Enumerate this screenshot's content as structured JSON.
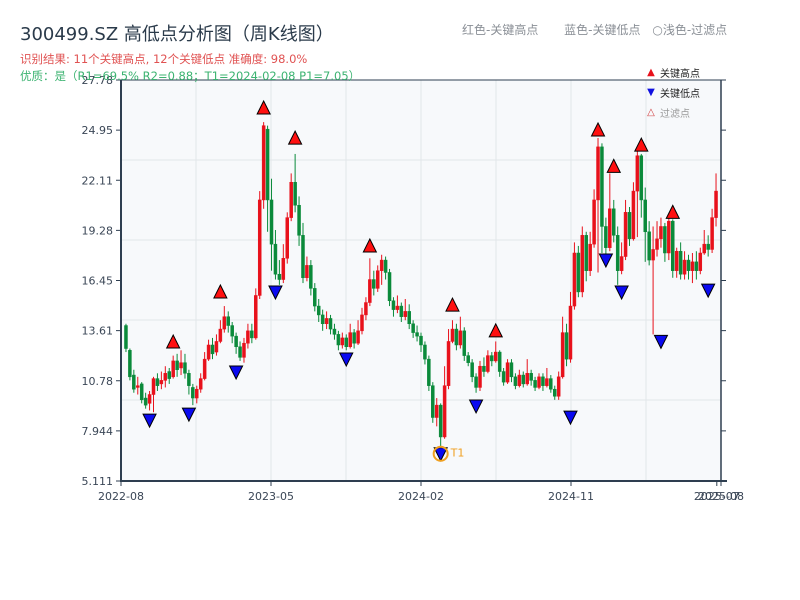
{
  "header": {
    "title": "300499.SZ 高低点分析图（周K线图）",
    "result_line": "识别结果: 11个关键高点, 12个关键低点  准确度: 98.0%",
    "quality_line": "优质：是（R1=69.5%  R2=0.88；T1=2024-02-08 P1=7.05）",
    "top_legend": [
      "红色-关键高点",
      "蓝色-关键低点",
      "○浅色-过滤点"
    ]
  },
  "legend": {
    "items": [
      {
        "label": "关键高点",
        "symbol": "▲",
        "color": "#e8111b"
      },
      {
        "label": "关键低点",
        "symbol": "▼",
        "color": "#1010e0"
      },
      {
        "label": "过滤点",
        "symbol": "△",
        "color": "#999999"
      }
    ]
  },
  "colors": {
    "up": "#e8111b",
    "down": "#0a8a3a",
    "high_marker": "#ff1010",
    "low_marker": "#0a0af0",
    "t1_ring": "#f0a020",
    "axis": "#2e3e50",
    "grid": "#e2e6ea",
    "plot_bg": "#f7f9fb"
  },
  "chart_data": {
    "type": "candlestick",
    "title": "300499.SZ 高低点分析图（周K线图）",
    "xlabel": "",
    "ylabel": "",
    "ylim": [
      5.111,
      27.78
    ],
    "yticks": [
      "27.78",
      "24.95",
      "22.11",
      "19.28",
      "16.45",
      "13.61",
      "10.78",
      "7.944",
      "5.111"
    ],
    "xticks": [
      {
        "label": "2022-08",
        "pos": 0
      },
      {
        "label": "2023-05",
        "pos": 0.25
      },
      {
        "label": "2024-02",
        "pos": 0.5
      },
      {
        "label": "2024-11",
        "pos": 0.75
      },
      {
        "label": "2025-07",
        "pos": 0.993
      },
      {
        "label": "2025-08",
        "pos": 1.0
      }
    ],
    "grid": true,
    "legend_position": "upper right",
    "annotation": {
      "label": "T1",
      "date": "2024-02-08",
      "price": 7.05
    },
    "candles_ohlc": [
      [
        13.9,
        12.6,
        14.0,
        12.4
      ],
      [
        12.5,
        11.0,
        12.6,
        10.8
      ],
      [
        11.1,
        10.3,
        11.4,
        10.1
      ],
      [
        10.4,
        10.5,
        11.0,
        10.0
      ],
      [
        10.6,
        9.7,
        10.7,
        9.5
      ],
      [
        9.8,
        9.4,
        10.1,
        9.2
      ],
      [
        9.5,
        10.0,
        10.2,
        9.1
      ],
      [
        10.0,
        10.9,
        11.0,
        9.0
      ],
      [
        10.9,
        10.5,
        11.2,
        10.2
      ],
      [
        10.6,
        10.8,
        11.3,
        10.3
      ],
      [
        10.8,
        11.2,
        11.6,
        10.4
      ],
      [
        11.3,
        10.9,
        11.5,
        10.6
      ],
      [
        11.0,
        11.9,
        12.2,
        10.9
      ],
      [
        11.9,
        11.4,
        12.3,
        11.0
      ],
      [
        11.5,
        11.8,
        12.5,
        11.1
      ],
      [
        11.8,
        11.2,
        12.3,
        10.9
      ],
      [
        11.2,
        10.5,
        11.4,
        10.0
      ],
      [
        10.4,
        9.8,
        10.6,
        9.4
      ],
      [
        9.8,
        10.3,
        10.5,
        9.5
      ],
      [
        10.3,
        10.9,
        11.2,
        10.1
      ],
      [
        10.9,
        12.0,
        12.4,
        10.8
      ],
      [
        12.0,
        12.8,
        13.1,
        11.9
      ],
      [
        12.8,
        12.3,
        13.2,
        12.0
      ],
      [
        12.4,
        13.0,
        13.4,
        12.2
      ],
      [
        13.0,
        13.7,
        14.2,
        12.9
      ],
      [
        13.7,
        14.4,
        15.0,
        13.5
      ],
      [
        14.4,
        13.9,
        14.7,
        13.5
      ],
      [
        13.9,
        13.3,
        14.1,
        12.9
      ],
      [
        13.3,
        12.7,
        13.5,
        12.3
      ],
      [
        12.7,
        12.1,
        13.0,
        11.9
      ],
      [
        12.1,
        12.9,
        13.2,
        11.8
      ],
      [
        12.9,
        13.6,
        14.0,
        12.6
      ],
      [
        13.6,
        13.2,
        14.0,
        12.9
      ],
      [
        13.2,
        15.6,
        16.0,
        13.1
      ],
      [
        15.6,
        21.0,
        21.5,
        15.4
      ],
      [
        21.0,
        25.2,
        25.4,
        20.5
      ],
      [
        25.0,
        21.0,
        25.2,
        19.2
      ],
      [
        21.0,
        18.5,
        22.2,
        17.0
      ],
      [
        18.5,
        16.8,
        19.3,
        16.5
      ],
      [
        16.8,
        16.5,
        17.6,
        16.2
      ],
      [
        16.5,
        17.7,
        18.5,
        16.3
      ],
      [
        17.7,
        20.0,
        20.3,
        17.4
      ],
      [
        20.0,
        22.0,
        22.5,
        19.8
      ],
      [
        22.0,
        20.7,
        23.6,
        20.3
      ],
      [
        20.7,
        19.0,
        21.2,
        18.4
      ],
      [
        19.0,
        16.6,
        19.7,
        16.3
      ],
      [
        16.6,
        17.3,
        17.8,
        16.4
      ],
      [
        17.3,
        16.0,
        17.6,
        15.6
      ],
      [
        16.0,
        15.0,
        16.3,
        14.7
      ],
      [
        15.0,
        14.5,
        15.4,
        14.1
      ],
      [
        14.5,
        14.0,
        14.8,
        13.6
      ],
      [
        14.0,
        14.3,
        14.7,
        13.7
      ],
      [
        14.3,
        13.7,
        14.5,
        13.4
      ],
      [
        13.7,
        13.4,
        14.0,
        13.1
      ],
      [
        13.4,
        12.8,
        13.6,
        12.5
      ],
      [
        12.8,
        13.2,
        13.5,
        12.6
      ],
      [
        13.2,
        12.7,
        13.4,
        12.5
      ],
      [
        12.7,
        13.5,
        14.0,
        12.6
      ],
      [
        13.5,
        12.9,
        13.7,
        12.6
      ],
      [
        12.9,
        13.6,
        14.2,
        12.8
      ],
      [
        13.6,
        14.5,
        14.9,
        13.4
      ],
      [
        14.5,
        15.2,
        15.5,
        14.2
      ],
      [
        15.2,
        16.5,
        17.7,
        15.0
      ],
      [
        16.5,
        16.0,
        17.0,
        15.6
      ],
      [
        16.0,
        17.0,
        17.3,
        15.8
      ],
      [
        17.0,
        17.6,
        17.9,
        16.2
      ],
      [
        17.6,
        16.9,
        17.8,
        16.5
      ],
      [
        16.9,
        15.3,
        17.1,
        15.0
      ],
      [
        15.3,
        14.8,
        15.5,
        14.4
      ],
      [
        14.8,
        15.0,
        15.6,
        14.6
      ],
      [
        15.0,
        14.4,
        15.2,
        14.1
      ],
      [
        14.4,
        14.7,
        15.4,
        14.2
      ],
      [
        14.7,
        14.0,
        15.1,
        13.7
      ],
      [
        14.0,
        13.5,
        14.2,
        13.2
      ],
      [
        13.5,
        13.3,
        13.9,
        13.0
      ],
      [
        13.3,
        12.8,
        13.5,
        12.4
      ],
      [
        12.8,
        12.0,
        13.0,
        11.7
      ],
      [
        12.0,
        10.5,
        12.2,
        10.2
      ],
      [
        10.5,
        8.7,
        10.7,
        8.4
      ],
      [
        8.7,
        9.4,
        9.8,
        8.2
      ],
      [
        9.4,
        7.6,
        9.5,
        7.05
      ],
      [
        7.6,
        10.5,
        11.6,
        7.5
      ],
      [
        10.5,
        13.0,
        13.7,
        10.3
      ],
      [
        13.0,
        13.7,
        14.2,
        12.9
      ],
      [
        13.7,
        12.8,
        14.0,
        12.5
      ],
      [
        12.8,
        13.6,
        14.4,
        12.6
      ],
      [
        13.6,
        12.2,
        13.8,
        11.9
      ],
      [
        12.2,
        11.8,
        12.4,
        11.6
      ],
      [
        11.8,
        11.0,
        12.0,
        10.7
      ],
      [
        11.0,
        10.4,
        11.2,
        10.1
      ],
      [
        10.4,
        11.6,
        11.9,
        10.2
      ],
      [
        11.6,
        11.3,
        12.1,
        11.0
      ],
      [
        11.3,
        12.2,
        12.5,
        11.2
      ],
      [
        12.2,
        11.9,
        12.4,
        11.6
      ],
      [
        11.9,
        12.4,
        13.0,
        11.8
      ],
      [
        12.4,
        11.3,
        12.5,
        11.0
      ],
      [
        11.3,
        10.7,
        11.5,
        10.5
      ],
      [
        10.7,
        11.8,
        12.0,
        10.6
      ],
      [
        11.8,
        11.0,
        12.0,
        10.7
      ],
      [
        11.0,
        10.5,
        11.2,
        10.3
      ],
      [
        10.5,
        11.1,
        11.4,
        10.4
      ],
      [
        11.1,
        10.6,
        11.3,
        10.4
      ],
      [
        10.6,
        11.2,
        12.0,
        10.5
      ],
      [
        11.2,
        10.8,
        11.4,
        10.5
      ],
      [
        10.8,
        10.4,
        11.0,
        10.2
      ],
      [
        10.4,
        11.0,
        11.2,
        10.3
      ],
      [
        11.0,
        10.5,
        11.2,
        10.2
      ],
      [
        10.5,
        10.9,
        11.5,
        10.4
      ],
      [
        10.9,
        10.3,
        11.1,
        10.1
      ],
      [
        10.3,
        9.9,
        10.5,
        9.7
      ],
      [
        9.9,
        11.0,
        11.3,
        9.7
      ],
      [
        11.0,
        13.5,
        14.4,
        10.9
      ],
      [
        13.5,
        12.0,
        14.0,
        11.6
      ],
      [
        12.0,
        15.0,
        15.8,
        11.8
      ],
      [
        15.0,
        18.0,
        18.6,
        14.8
      ],
      [
        18.0,
        15.8,
        18.4,
        15.5
      ],
      [
        15.8,
        19.0,
        19.5,
        15.5
      ],
      [
        19.0,
        17.0,
        19.2,
        16.4
      ],
      [
        17.0,
        18.5,
        19.2,
        16.7
      ],
      [
        18.5,
        21.0,
        21.6,
        18.3
      ],
      [
        21.0,
        24.0,
        24.5,
        16.9
      ],
      [
        24.0,
        19.5,
        24.2,
        18.0
      ],
      [
        19.5,
        18.3,
        20.0,
        17.9
      ],
      [
        18.3,
        20.5,
        22.5,
        18.1
      ],
      [
        20.5,
        19.0,
        21.0,
        18.6
      ],
      [
        19.0,
        17.0,
        19.5,
        16.2
      ],
      [
        17.0,
        17.8,
        18.6,
        16.8
      ],
      [
        17.8,
        20.3,
        21.0,
        17.6
      ],
      [
        20.3,
        18.8,
        20.6,
        18.4
      ],
      [
        18.8,
        21.5,
        22.0,
        18.7
      ],
      [
        21.5,
        23.5,
        23.9,
        18.9
      ],
      [
        23.5,
        21.0,
        23.6,
        20.0
      ],
      [
        21.0,
        19.2,
        21.7,
        17.5
      ],
      [
        19.2,
        17.6,
        19.8,
        17.3
      ],
      [
        17.6,
        18.2,
        19.5,
        13.4
      ],
      [
        18.2,
        18.8,
        19.8,
        17.8
      ],
      [
        18.8,
        19.5,
        20.0,
        18.3
      ],
      [
        19.5,
        18.0,
        19.7,
        17.5
      ],
      [
        18.0,
        19.8,
        20.0,
        17.6
      ],
      [
        19.8,
        17.0,
        19.9,
        16.6
      ],
      [
        17.0,
        18.1,
        18.3,
        16.6
      ],
      [
        18.1,
        16.8,
        18.6,
        16.5
      ],
      [
        16.8,
        17.6,
        18.1,
        16.5
      ],
      [
        17.6,
        17.0,
        17.9,
        16.5
      ],
      [
        17.0,
        17.5,
        18.0,
        16.3
      ],
      [
        17.5,
        17.0,
        18.1,
        16.5
      ],
      [
        17.0,
        18.0,
        18.3,
        16.8
      ],
      [
        18.0,
        18.5,
        19.3,
        17.9
      ],
      [
        18.5,
        18.2,
        19.0,
        17.8
      ],
      [
        18.2,
        20.0,
        20.5,
        18.0
      ],
      [
        20.0,
        21.5,
        22.5,
        19.5
      ]
    ],
    "key_highs": [
      {
        "i": 12,
        "price": 12.57
      },
      {
        "i": 24,
        "price": 15.4
      },
      {
        "i": 35,
        "price": 25.8
      },
      {
        "i": 43,
        "price": 24.1
      },
      {
        "i": 62,
        "price": 18.0
      },
      {
        "i": 83,
        "price": 14.66
      },
      {
        "i": 94,
        "price": 13.2
      },
      {
        "i": 120,
        "price": 24.56
      },
      {
        "i": 124,
        "price": 22.5
      },
      {
        "i": 131,
        "price": 23.7
      },
      {
        "i": 139,
        "price": 19.9
      }
    ],
    "key_lows": [
      {
        "i": 6,
        "price": 8.95
      },
      {
        "i": 16,
        "price": 9.29
      },
      {
        "i": 28,
        "price": 11.67
      },
      {
        "i": 38,
        "price": 16.19
      },
      {
        "i": 56,
        "price": 12.4
      },
      {
        "i": 80,
        "price": 7.05
      },
      {
        "i": 89,
        "price": 9.75
      },
      {
        "i": 113,
        "price": 9.12
      },
      {
        "i": 122,
        "price": 18.0
      },
      {
        "i": 126,
        "price": 16.19
      },
      {
        "i": 136,
        "price": 13.4
      },
      {
        "i": 148,
        "price": 16.3
      }
    ]
  }
}
